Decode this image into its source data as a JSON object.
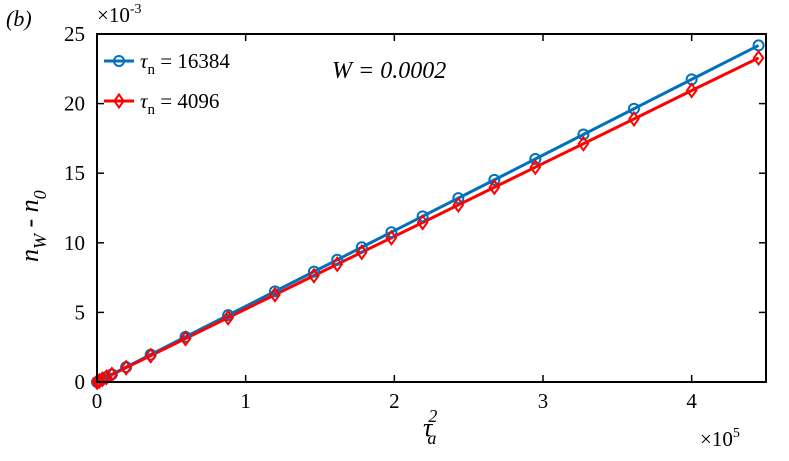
{
  "panel_label": "(b)",
  "annotation": "W = 0.0002",
  "chart_data": {
    "type": "line",
    "x_multiplier_label": "×10",
    "x_multiplier_exp": "5",
    "y_multiplier_label": "×10",
    "y_multiplier_exp": "-3",
    "xlabel_main": "τ",
    "xlabel_sup": "2",
    "xlabel_sub": "a",
    "ylabel_n1": "n",
    "ylabel_sub1": "W",
    "ylabel_mid": " - n",
    "ylabel_sub2": "0",
    "xlim": [
      0,
      450000
    ],
    "ylim": [
      0,
      0.025
    ],
    "x_ticks": [
      0,
      100000,
      200000,
      300000,
      400000
    ],
    "x_tick_labels": [
      "0",
      "1",
      "2",
      "3",
      "4"
    ],
    "y_ticks": [
      0,
      0.005,
      0.01,
      0.015,
      0.02,
      0.025
    ],
    "y_tick_labels": [
      "0",
      "5",
      "10",
      "15",
      "20",
      "25"
    ],
    "grid": false,
    "legend_position": "top-left",
    "series": [
      {
        "name_prefix": "τ",
        "name_sub": "n",
        "name_suffix": " = 16384",
        "color": "#0072bd",
        "marker": "circle",
        "x": [
          0,
          400,
          1600,
          3600,
          6400,
          10000,
          19600,
          36100,
          59536,
          88209,
          119716,
          145924,
          161604,
          178084,
          198025,
          219024,
          243049,
          267289,
          294849,
          327184,
          361201,
          400000,
          445000
        ],
        "y": [
          0,
          2e-05,
          9e-05,
          0.0002,
          0.00036,
          0.00055,
          0.00107,
          0.00197,
          0.00324,
          0.0048,
          0.00651,
          0.00793,
          0.00878,
          0.00968,
          0.01076,
          0.0119,
          0.01321,
          0.01452,
          0.01602,
          0.01778,
          0.01963,
          0.02174,
          0.02418
        ]
      },
      {
        "name_prefix": "τ",
        "name_sub": "n",
        "name_suffix": " = 4096",
        "color": "#ff0000",
        "marker": "diamond",
        "x": [
          0,
          400,
          1600,
          3600,
          6400,
          10000,
          19600,
          36100,
          59536,
          88209,
          119716,
          145924,
          161604,
          178084,
          198025,
          219024,
          243049,
          267289,
          294849,
          327184,
          361201,
          400000,
          445000
        ],
        "y": [
          0,
          2e-05,
          8e-05,
          0.00019,
          0.00034,
          0.00053,
          0.00103,
          0.00189,
          0.00312,
          0.00462,
          0.00627,
          0.00764,
          0.00846,
          0.00932,
          0.01036,
          0.01146,
          0.01272,
          0.01399,
          0.01543,
          0.01712,
          0.0189,
          0.02094,
          0.02328
        ]
      }
    ]
  }
}
